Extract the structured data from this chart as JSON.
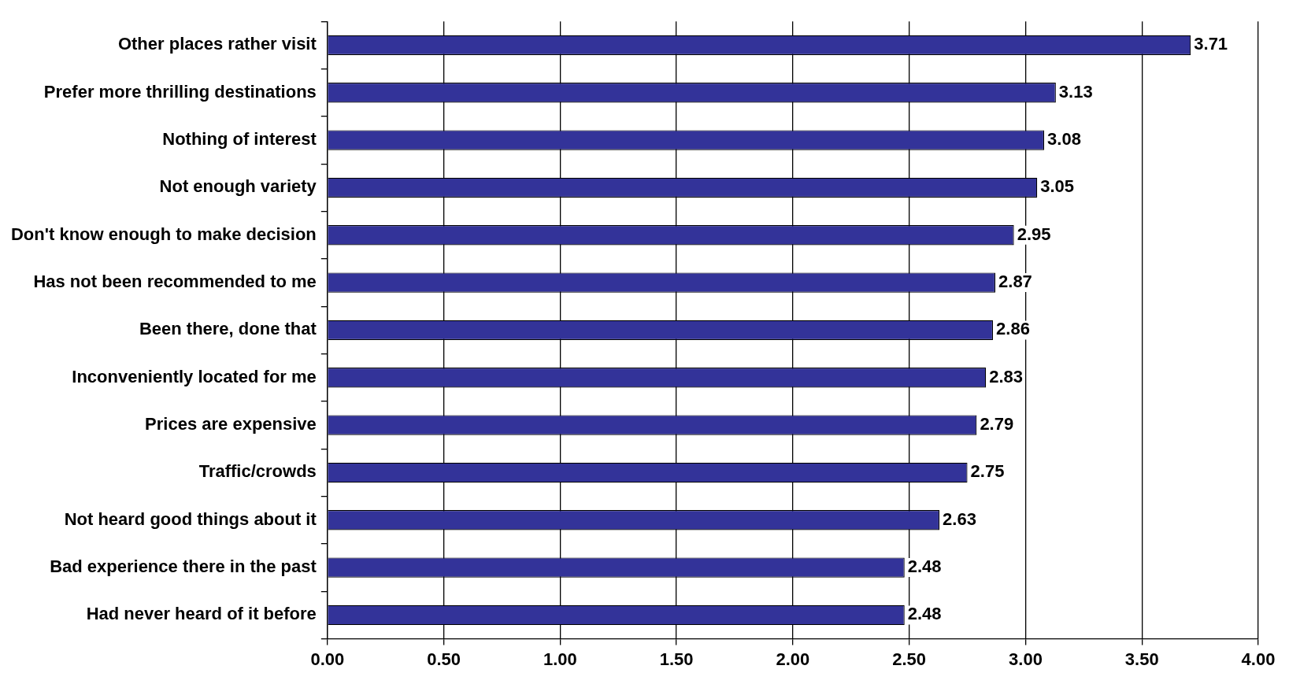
{
  "chart_data": {
    "type": "bar",
    "orientation": "horizontal",
    "categories": [
      "Other places rather visit",
      "Prefer more thrilling destinations",
      "Nothing of interest",
      "Not enough variety",
      "Don't know enough to make decision",
      "Has not been recommended to me",
      "Been there, done that",
      "Inconveniently located for me",
      "Prices are expensive",
      "Traffic/crowds",
      "Not heard good things about it",
      "Bad experience there in the past",
      "Had never heard of it before"
    ],
    "values": [
      3.71,
      3.13,
      3.08,
      3.05,
      2.95,
      2.87,
      2.86,
      2.83,
      2.79,
      2.75,
      2.63,
      2.48,
      2.48
    ],
    "color": "#333399",
    "xlim": [
      0,
      4
    ],
    "xticks": [
      {
        "value": 0,
        "label": "0.00"
      },
      {
        "value": 0.5,
        "label": "0.50"
      },
      {
        "value": 1,
        "label": "1.00"
      },
      {
        "value": 1.5,
        "label": "1.50"
      },
      {
        "value": 2,
        "label": "2.00"
      },
      {
        "value": 2.5,
        "label": "2.50"
      },
      {
        "value": 3,
        "label": "3.00"
      },
      {
        "value": 3.5,
        "label": "3.50"
      },
      {
        "value": 4,
        "label": "4.00"
      }
    ],
    "grid": "x",
    "data_labels": true,
    "legend": false
  }
}
